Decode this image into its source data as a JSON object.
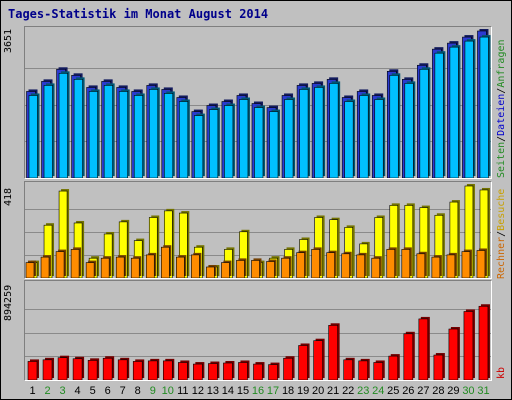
{
  "title": "Tages-Statistik im Monat August 2014",
  "chart_data": [
    {
      "type": "bar",
      "name": "visits_pages_files",
      "y_max_label": "3651",
      "ylim": [
        0,
        3651
      ],
      "right_label_parts": [
        "Seiten",
        "/",
        "Dateien",
        "/",
        "Anfragen"
      ],
      "categories": [
        "1",
        "2",
        "3",
        "4",
        "5",
        "6",
        "7",
        "8",
        "9",
        "10",
        "11",
        "12",
        "13",
        "14",
        "15",
        "16",
        "17",
        "18",
        "19",
        "20",
        "21",
        "22",
        "23",
        "24",
        "25",
        "26",
        "27",
        "28",
        "29",
        "30",
        "31"
      ],
      "series": [
        {
          "name": "Anfragen",
          "color": "#2b3bd0",
          "values": [
            2150,
            2400,
            2700,
            2550,
            2250,
            2400,
            2250,
            2150,
            2300,
            2200,
            2000,
            1650,
            1800,
            1900,
            2050,
            1850,
            1750,
            2050,
            2300,
            2350,
            2450,
            2000,
            2150,
            2050,
            2650,
            2450,
            2800,
            3200,
            3350,
            3500,
            3651
          ]
        },
        {
          "name": "Dateien",
          "color": "#00c0ff",
          "values": [
            2050,
            2300,
            2600,
            2450,
            2150,
            2300,
            2150,
            2050,
            2200,
            2100,
            1900,
            1550,
            1700,
            1800,
            1950,
            1750,
            1650,
            1950,
            2200,
            2250,
            2350,
            1900,
            2050,
            1950,
            2550,
            2350,
            2700,
            3100,
            3250,
            3400,
            3500
          ]
        }
      ]
    },
    {
      "type": "bar",
      "name": "visits_hosts",
      "y_max_label": "418",
      "ylim": [
        0,
        418
      ],
      "right_label_parts": [
        "Rechner",
        "/",
        "Besuche"
      ],
      "categories": [
        "1",
        "2",
        "3",
        "4",
        "5",
        "6",
        "7",
        "8",
        "9",
        "10",
        "11",
        "12",
        "13",
        "14",
        "15",
        "16",
        "17",
        "18",
        "19",
        "20",
        "21",
        "22",
        "23",
        "24",
        "25",
        "26",
        "27",
        "28",
        "29",
        "30",
        "31"
      ],
      "series": [
        {
          "name": "Besuche",
          "color": "#ffff00",
          "values": [
            70,
            240,
            395,
            250,
            90,
            200,
            255,
            170,
            275,
            305,
            295,
            140,
            50,
            130,
            210,
            70,
            90,
            130,
            175,
            275,
            265,
            230,
            155,
            275,
            330,
            330,
            320,
            285,
            345,
            418,
            400
          ]
        },
        {
          "name": "Rechner",
          "color": "#ff8c00",
          "values": [
            70,
            95,
            120,
            130,
            70,
            90,
            95,
            90,
            105,
            140,
            95,
            105,
            50,
            70,
            80,
            80,
            75,
            90,
            115,
            130,
            115,
            110,
            105,
            90,
            130,
            130,
            110,
            95,
            105,
            120,
            125
          ]
        }
      ]
    },
    {
      "type": "bar",
      "name": "kbytes",
      "y_max_label": "894259",
      "ylim": [
        0,
        894259
      ],
      "right_label": "kb",
      "categories": [
        "1",
        "2",
        "3",
        "4",
        "5",
        "6",
        "7",
        "8",
        "9",
        "10",
        "11",
        "12",
        "13",
        "14",
        "15",
        "16",
        "17",
        "18",
        "19",
        "20",
        "21",
        "22",
        "23",
        "24",
        "25",
        "26",
        "27",
        "28",
        "29",
        "30",
        "31"
      ],
      "series": [
        {
          "name": "kb",
          "color": "#ff0000",
          "values": [
            175000,
            190000,
            210000,
            200000,
            185000,
            205000,
            190000,
            175000,
            180000,
            180000,
            165000,
            150000,
            155000,
            160000,
            165000,
            150000,
            145000,
            205000,
            325000,
            370000,
            515000,
            190000,
            180000,
            165000,
            225000,
            435000,
            575000,
            235000,
            480000,
            645000,
            694259
          ]
        }
      ]
    }
  ],
  "x_label_colors": {
    "weekday": "#000000",
    "weekend": "#228b22"
  },
  "weekend_days": [
    "2",
    "3",
    "9",
    "10",
    "16",
    "17",
    "23",
    "24",
    "30",
    "31"
  ]
}
